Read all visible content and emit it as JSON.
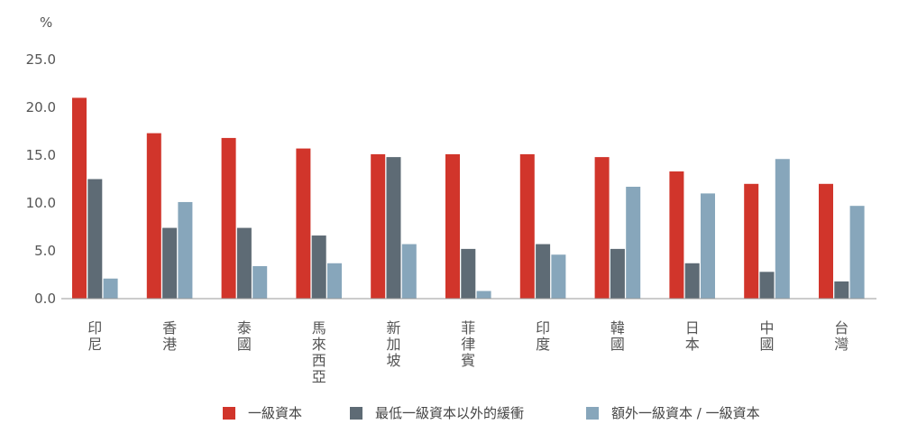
{
  "chart_data": {
    "type": "bar",
    "ylabel": "%",
    "ylim": [
      0,
      25
    ],
    "yticks": [
      "0.0",
      "5.0",
      "10.0",
      "15.0",
      "20.0",
      "25.0"
    ],
    "grid": false,
    "legend_position": "bottom",
    "categories": [
      "印尼",
      "香港",
      "泰國",
      "馬來西亞",
      "新加坡",
      "菲律賓",
      "印度",
      "韓國",
      "日本",
      "中國",
      "台灣"
    ],
    "series": [
      {
        "name": "一級資本",
        "color": "#d1352b",
        "values": [
          21.0,
          17.3,
          16.8,
          15.7,
          15.1,
          15.1,
          15.1,
          14.8,
          13.3,
          12.0,
          12.0
        ]
      },
      {
        "name": "最低一級資本以外的緩衝",
        "color": "#5e6b75",
        "values": [
          12.5,
          7.4,
          7.4,
          6.6,
          14.8,
          5.2,
          5.7,
          5.2,
          3.7,
          2.8,
          1.8
        ]
      },
      {
        "name": "額外一級資本 / 一級資本",
        "color": "#87a6bb",
        "values": [
          2.1,
          10.1,
          3.4,
          3.7,
          5.7,
          0.8,
          4.6,
          11.7,
          11.0,
          14.6,
          9.7
        ]
      }
    ]
  }
}
